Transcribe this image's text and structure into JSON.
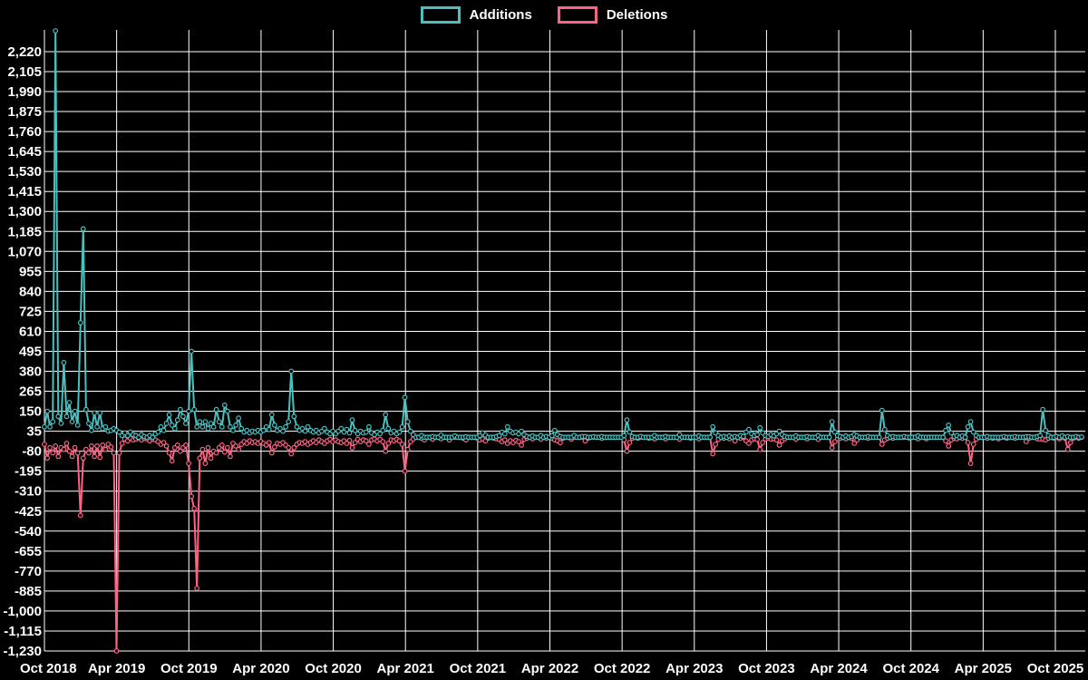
{
  "page": {
    "background": "#000000",
    "text_color": "#ffffff",
    "grid_color": "#ffffff"
  },
  "legend": {
    "position": "top"
  },
  "chart_data": {
    "type": "line",
    "title": "",
    "xlabel": "",
    "ylabel": "",
    "grid": true,
    "legend_position": "top-center",
    "x_tick_labels": [
      "Oct 2018",
      "Apr 2019",
      "Oct 2019",
      "Apr 2020",
      "Oct 2020",
      "Apr 2021",
      "Oct 2021",
      "Apr 2022",
      "Oct 2022",
      "Apr 2023",
      "Oct 2023",
      "Apr 2024",
      "Oct 2024",
      "Apr 2025",
      "Oct 2025"
    ],
    "y_tick_labels": [
      "2,220",
      "2,105",
      "1,990",
      "1,875",
      "1,760",
      "1,645",
      "1,530",
      "1,415",
      "1,300",
      "1,185",
      "1,070",
      "955",
      "840",
      "725",
      "610",
      "495",
      "380",
      "265",
      "150",
      "35",
      "-80",
      "-195",
      "-310",
      "-425",
      "-540",
      "-655",
      "-770",
      "-885",
      "-1,000",
      "-1,115",
      "-1,230"
    ],
    "y_axis": {
      "tick_max": 2220,
      "tick_min": -1230,
      "tick_step": 115,
      "domain_min": -1230,
      "domain_max": 2345
    },
    "x_axis": {
      "unit": "week",
      "first_label": "Oct 2018",
      "last_label": "Oct 2025"
    },
    "point_style": {
      "radius": 2.3,
      "fill": "#000000",
      "hollow": true
    },
    "series": [
      {
        "name": "Additions",
        "color": "#4bc0c0",
        "values": [
          60,
          150,
          60,
          90,
          2340,
          120,
          80,
          430,
          120,
          200,
          90,
          150,
          70,
          660,
          1200,
          160,
          80,
          40,
          140,
          60,
          140,
          50,
          60,
          35,
          40,
          50,
          40,
          30,
          10,
          25,
          10,
          30,
          15,
          10,
          0,
          15,
          5,
          0,
          10,
          0,
          20,
          30,
          60,
          40,
          80,
          130,
          70,
          50,
          100,
          160,
          120,
          80,
          150,
          495,
          160,
          60,
          90,
          60,
          90,
          50,
          80,
          60,
          160,
          90,
          60,
          185,
          150,
          60,
          40,
          70,
          110,
          50,
          30,
          40,
          25,
          35,
          30,
          40,
          30,
          40,
          60,
          45,
          130,
          70,
          40,
          50,
          35,
          60,
          90,
          380,
          120,
          60,
          40,
          50,
          35,
          60,
          40,
          30,
          40,
          25,
          35,
          50,
          30,
          20,
          35,
          20,
          35,
          50,
          30,
          45,
          25,
          100,
          40,
          20,
          35,
          25,
          30,
          60,
          25,
          15,
          30,
          20,
          40,
          130,
          50,
          25,
          35,
          20,
          30,
          60,
          230,
          90,
          35,
          15,
          0,
          0,
          10,
          0,
          0,
          0,
          5,
          0,
          0,
          12,
          0,
          0,
          0,
          0,
          8,
          0,
          0,
          0,
          3,
          0,
          0,
          0,
          0,
          10,
          25,
          12,
          0,
          0,
          0,
          5,
          10,
          30,
          20,
          60,
          35,
          25,
          30,
          20,
          35,
          15,
          5,
          0,
          8,
          0,
          0,
          10,
          0,
          5,
          0,
          10,
          40,
          15,
          5,
          0,
          0,
          0,
          0,
          10,
          0,
          0,
          5,
          5,
          0,
          0,
          3,
          0,
          0,
          5,
          0,
          0,
          0,
          0,
          0,
          0,
          0,
          10,
          100,
          30,
          5,
          0,
          0,
          5,
          0,
          0,
          0,
          0,
          10,
          0,
          0,
          0,
          5,
          0,
          0,
          0,
          0,
          15,
          0,
          0,
          0,
          0,
          0,
          0,
          8,
          0,
          0,
          0,
          0,
          60,
          25,
          10,
          0,
          5,
          0,
          8,
          0,
          5,
          0,
          10,
          5,
          30,
          45,
          20,
          10,
          15,
          55,
          25,
          10,
          5,
          15,
          8,
          20,
          35,
          15,
          5,
          0,
          0,
          0,
          8,
          0,
          0,
          0,
          5,
          0,
          0,
          0,
          10,
          0,
          0,
          0,
          0,
          90,
          30,
          10,
          5,
          0,
          8,
          0,
          5,
          15,
          8,
          0,
          0,
          0,
          5,
          0,
          0,
          0,
          0,
          155,
          45,
          10,
          0,
          5,
          0,
          0,
          0,
          5,
          0,
          0,
          0,
          0,
          8,
          0,
          0,
          0,
          0,
          0,
          0,
          0,
          0,
          0,
          40,
          70,
          25,
          5,
          10,
          0,
          8,
          0,
          60,
          90,
          30,
          10,
          0,
          0,
          0,
          5,
          0,
          0,
          0,
          0,
          0,
          5,
          0,
          0,
          0,
          5,
          0,
          0,
          0,
          3,
          3,
          0,
          0,
          5,
          10,
          160,
          40,
          10,
          0,
          0,
          5,
          0,
          8,
          0,
          5,
          0,
          0,
          5,
          0,
          2
        ]
      },
      {
        "name": "Deletions",
        "color": "#ff6384",
        "values": [
          -40,
          -120,
          -60,
          -90,
          -50,
          -110,
          -60,
          -70,
          -35,
          -80,
          -110,
          -60,
          -90,
          -450,
          -120,
          -70,
          -90,
          -50,
          -110,
          -50,
          -115,
          -45,
          -70,
          -40,
          -55,
          -90,
          -1230,
          -90,
          -35,
          -10,
          -20,
          -5,
          -15,
          -10,
          -5,
          -15,
          -5,
          -10,
          -20,
          -10,
          -15,
          -25,
          -40,
          -30,
          -50,
          -90,
          -135,
          -60,
          -45,
          -80,
          -60,
          -45,
          -150,
          -340,
          -410,
          -870,
          -120,
          -70,
          -150,
          -60,
          -120,
          -80,
          -90,
          -60,
          -45,
          -85,
          -60,
          -110,
          -35,
          -50,
          -70,
          -40,
          -25,
          -35,
          -20,
          -30,
          -25,
          -35,
          -25,
          -35,
          -45,
          -30,
          -90,
          -55,
          -35,
          -40,
          -30,
          -45,
          -60,
          -95,
          -60,
          -40,
          -30,
          -35,
          -25,
          -40,
          -30,
          -20,
          -30,
          -15,
          -25,
          -35,
          -20,
          -12,
          -25,
          -15,
          -25,
          -30,
          -20,
          -35,
          -18,
          -60,
          -30,
          -12,
          -25,
          -15,
          -20,
          -40,
          -15,
          -10,
          -20,
          -12,
          -25,
          -80,
          -35,
          -15,
          -20,
          -12,
          -20,
          -40,
          -195,
          -70,
          -25,
          -10,
          0,
          0,
          -5,
          -15,
          0,
          0,
          -10,
          0,
          0,
          -8,
          0,
          0,
          -15,
          0,
          0,
          0,
          0,
          -5,
          -15,
          0,
          0,
          0,
          -5,
          -15,
          -10,
          -20,
          -5,
          0,
          -5,
          -8,
          -12,
          -25,
          -15,
          -35,
          -20,
          -30,
          -18,
          -25,
          -45,
          -12,
          -5,
          0,
          -8,
          0,
          0,
          -10,
          0,
          -5,
          0,
          -5,
          -15,
          -20,
          -30,
          -5,
          0,
          0,
          -10,
          0,
          0,
          0,
          0,
          -20,
          -5,
          0,
          0,
          0,
          0,
          -5,
          0,
          0,
          0,
          0,
          0,
          0,
          0,
          -15,
          -80,
          -30,
          -5,
          0,
          -5,
          0,
          0,
          0,
          -5,
          0,
          -8,
          0,
          0,
          0,
          -8,
          0,
          0,
          0,
          0,
          -10,
          0,
          0,
          0,
          -5,
          0,
          0,
          -8,
          0,
          0,
          0,
          0,
          -95,
          -40,
          -12,
          0,
          -5,
          0,
          -8,
          0,
          -20,
          0,
          -5,
          0,
          -20,
          -35,
          -15,
          -8,
          -12,
          -70,
          -30,
          -10,
          -5,
          -10,
          -8,
          -15,
          -45,
          -20,
          -8,
          0,
          0,
          0,
          -10,
          0,
          0,
          0,
          -8,
          0,
          0,
          0,
          -12,
          0,
          0,
          0,
          0,
          -60,
          -25,
          -8,
          -5,
          0,
          -8,
          0,
          -5,
          -35,
          -15,
          0,
          0,
          0,
          -5,
          0,
          0,
          0,
          0,
          -40,
          -15,
          -5,
          0,
          -5,
          0,
          0,
          0,
          0,
          0,
          -5,
          0,
          0,
          -8,
          0,
          0,
          -8,
          0,
          0,
          0,
          0,
          0,
          0,
          -20,
          -50,
          -15,
          -5,
          -8,
          0,
          -5,
          0,
          -30,
          -150,
          -40,
          -10,
          0,
          0,
          0,
          -5,
          0,
          -5,
          0,
          -8,
          0,
          0,
          -5,
          0,
          0,
          -5,
          0,
          0,
          0,
          -25,
          -5,
          0,
          0,
          -8,
          -10,
          -10,
          -15,
          -5,
          0,
          -5,
          0,
          -8,
          0,
          -5,
          -70,
          -30,
          -5,
          0,
          -5,
          0
        ]
      }
    ]
  }
}
